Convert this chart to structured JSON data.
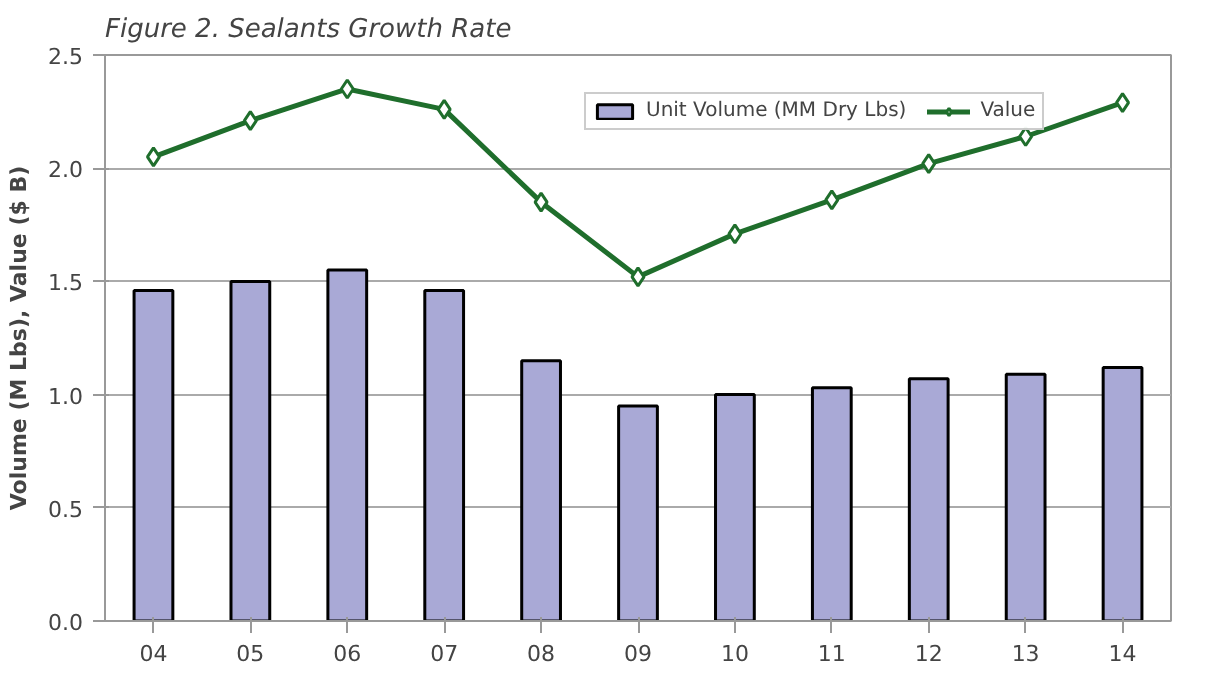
{
  "chart_data": {
    "type": "bar",
    "title": "Figure 2. Sealants Growth Rate",
    "ylabel": "Volume (M Lbs), Value ($ B)",
    "categories": [
      "04",
      "05",
      "06",
      "07",
      "08",
      "09",
      "10",
      "11",
      "12",
      "13",
      "14"
    ],
    "series": [
      {
        "name": "Unit Volume (MM Dry Lbs)",
        "color": "#a9a9d6",
        "values": [
          1.46,
          1.5,
          1.55,
          1.46,
          1.15,
          0.95,
          1.0,
          1.03,
          1.07,
          1.09,
          1.12
        ]
      },
      {
        "name": "Value",
        "type": "line",
        "color": "#1f6e2c",
        "marker": "diamond",
        "values": [
          2.05,
          2.21,
          2.35,
          2.26,
          1.85,
          1.52,
          1.71,
          1.86,
          2.02,
          2.14,
          2.29
        ]
      }
    ],
    "ylim": [
      0,
      2.5
    ],
    "yticks": [
      {
        "value": 0,
        "label": "0.0"
      },
      {
        "value": 0.5,
        "label": "0.5"
      },
      {
        "value": 1,
        "label": "1.0"
      },
      {
        "value": 1.5,
        "label": "1.5"
      },
      {
        "value": 2,
        "label": "2.0"
      },
      {
        "value": 2.5,
        "label": "2.5"
      }
    ],
    "grid": "y",
    "legend": "top right"
  }
}
